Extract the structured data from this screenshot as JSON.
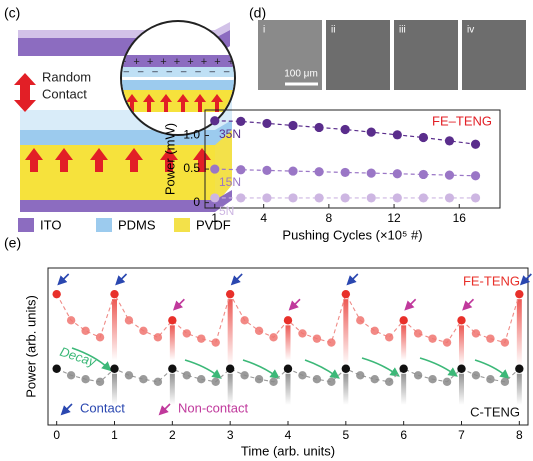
{
  "panel_c": {
    "label": "(c)",
    "annotation": [
      "Random",
      "Contact"
    ],
    "legend": [
      {
        "name": "ITO",
        "color": "#8c6cc0"
      },
      {
        "name": "PDMS",
        "color": "#9ccbee"
      },
      {
        "name": "PVDF",
        "color": "#f3e14a"
      }
    ]
  },
  "panel_d": {
    "label": "(d)",
    "images": [
      "i",
      "ii",
      "iii",
      "iv"
    ],
    "scale_bar": "100 μm"
  },
  "chart_data": [
    {
      "type": "line",
      "title": "FE–TENG",
      "x_label": "Pushing Cycles (×10⁵ #)",
      "y_label": "Power (mW)",
      "x": [
        1,
        2.6,
        4.2,
        5.8,
        7.4,
        9,
        10.6,
        12.2,
        13.8,
        15.4,
        17
      ],
      "series": [
        {
          "name": "35N",
          "color": "#5a2d8c",
          "values": [
            1.22,
            1.21,
            1.18,
            1.15,
            1.12,
            1.09,
            1.05,
            1.01,
            0.97,
            0.92,
            0.87
          ]
        },
        {
          "name": "15N",
          "color": "#9a76c6",
          "values": [
            0.5,
            0.49,
            0.48,
            0.47,
            0.46,
            0.45,
            0.44,
            0.43,
            0.42,
            0.41,
            0.4
          ]
        },
        {
          "name": "5N",
          "color": "#cdb6e2",
          "values": [
            0.07,
            0.07,
            0.07,
            0.07,
            0.07,
            0.07,
            0.07,
            0.07,
            0.07,
            0.07,
            0.07
          ]
        }
      ],
      "xlim": [
        0.4,
        18.5
      ],
      "ylim": [
        -0.08,
        1.38
      ],
      "xticks": [
        1,
        4,
        8,
        12,
        16
      ],
      "yticks": [
        0,
        0.5,
        {
          "value": 1,
          "label": "1.0"
        }
      ]
    },
    {
      "type": "line",
      "x_label": "Time (arb. units)",
      "y_label": "Power (arb. units)",
      "annotations": [
        "Decay",
        "Contact",
        "Non-contact"
      ],
      "x": [
        0,
        0.25,
        0.5,
        0.75,
        1,
        1.25,
        1.5,
        1.75,
        2,
        2.25,
        2.5,
        2.75,
        3,
        3.25,
        3.5,
        3.75,
        4,
        4.25,
        4.5,
        4.75,
        5,
        5.25,
        5.5,
        5.75,
        6,
        6.25,
        6.5,
        6.75,
        7,
        7.25,
        7.5,
        7.75,
        8
      ],
      "series": [
        {
          "name": "FE-TENG",
          "color": "#e8302a",
          "values": [
            1,
            0.8,
            0.72,
            0.67,
            1,
            0.8,
            0.72,
            0.67,
            0.8,
            0.7,
            0.66,
            0.63,
            1,
            0.8,
            0.72,
            0.67,
            0.8,
            0.7,
            0.66,
            0.63,
            1,
            0.8,
            0.72,
            0.67,
            0.8,
            0.7,
            0.66,
            0.63,
            0.8,
            0.7,
            0.66,
            0.63,
            1
          ]
        },
        {
          "name": "C-TENG",
          "color": "#111111",
          "values": [
            0.43,
            0.38,
            0.35,
            0.33,
            0.43,
            0.38,
            0.35,
            0.33,
            0.43,
            0.38,
            0.35,
            0.33,
            0.43,
            0.38,
            0.35,
            0.33,
            0.43,
            0.38,
            0.35,
            0.33,
            0.43,
            0.38,
            0.35,
            0.33,
            0.43,
            0.38,
            0.35,
            0.33,
            0.43,
            0.38,
            0.35,
            0.33,
            0.43
          ]
        }
      ],
      "contact_x": [
        0,
        1,
        3,
        5,
        8
      ],
      "noncontact_x": [
        2,
        4,
        6,
        7
      ],
      "xlim": [
        -0.15,
        8.15
      ],
      "ylim": [
        0,
        1.2
      ],
      "xticks": [
        0,
        1,
        2,
        3,
        4,
        5,
        6,
        7,
        8
      ]
    }
  ]
}
